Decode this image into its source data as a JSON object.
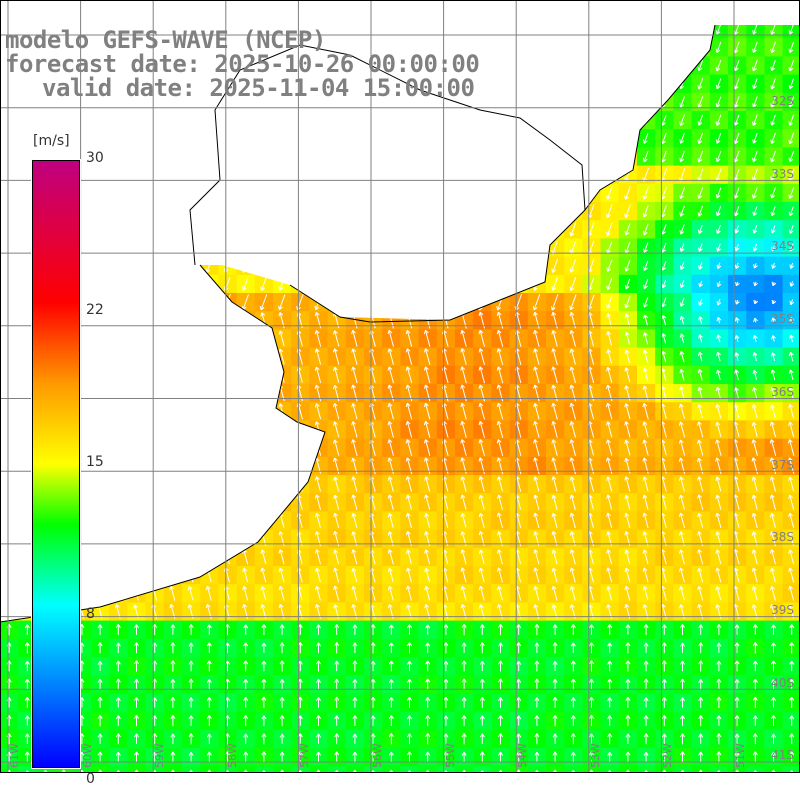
{
  "header": {
    "model": "modelo GEFS-WAVE (NCEP)",
    "forecast_date": "forecast date: 2025-10-26 00:00:00",
    "valid_date": "valid date: 2025-11-04 15:00:00"
  },
  "colorbar": {
    "unit": "[m/s]",
    "ticks": [
      "30",
      "22",
      "15",
      "8",
      "0"
    ],
    "range": [
      0,
      30
    ],
    "stops": [
      {
        "value": 0,
        "color": "#0000ff"
      },
      {
        "value": 8,
        "color": "#00ffff"
      },
      {
        "value": 12,
        "color": "#00ff00"
      },
      {
        "value": 15,
        "color": "#ffff00"
      },
      {
        "value": 19,
        "color": "#ff9900"
      },
      {
        "value": 23,
        "color": "#ff0000"
      },
      {
        "value": 30,
        "color": "#c00080"
      }
    ]
  },
  "axes": {
    "lat_labels": [
      "32S",
      "33S",
      "34S",
      "35S",
      "36S",
      "37S",
      "38S",
      "39S",
      "40S",
      "41S"
    ],
    "lon_labels": [
      "61W",
      "60W",
      "59W",
      "58W",
      "57W",
      "56W",
      "55W",
      "54W",
      "53W",
      "52W",
      "51W"
    ]
  }
}
